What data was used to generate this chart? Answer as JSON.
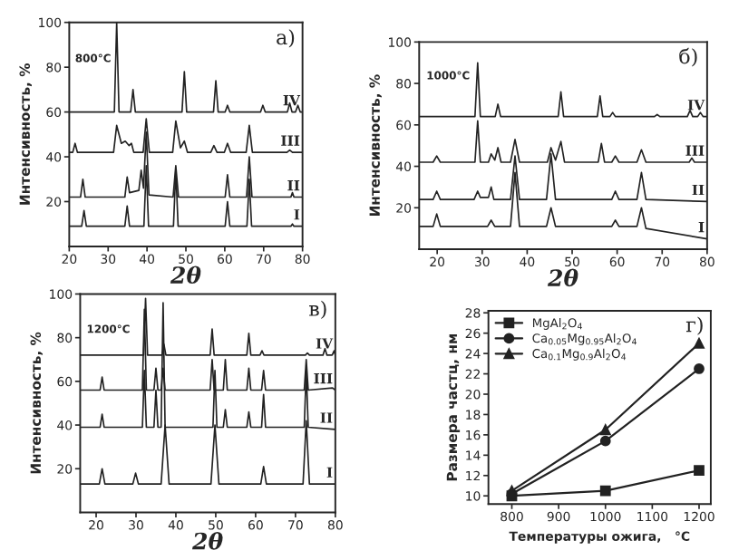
{
  "chart_data": [
    {
      "type": "line",
      "xlabel": "2θ",
      "ylabel": "Интенсивность, %",
      "xlim": [
        20,
        80
      ],
      "ylim": [
        0,
        100
      ],
      "xticks": [
        20,
        30,
        40,
        50,
        60,
        70,
        80
      ],
      "yticks": [
        20,
        40,
        60,
        80,
        100
      ],
      "marker": "none",
      "line_style": "solid",
      "grid": false,
      "legend": false,
      "annotations": [
        "а)",
        "800°C"
      ],
      "series": [
        {
          "name": "IV",
          "color": "#222222",
          "x": [
            20,
            31.6,
            32.2,
            32.8,
            35.8,
            36.4,
            37,
            49,
            49.6,
            50.2,
            57.1,
            57.7,
            58.3,
            60.1,
            60.7,
            61.3,
            69.2,
            69.8,
            70.4,
            76.1,
            76.7,
            77.3,
            78.2,
            78.8,
            79.4,
            80
          ],
          "values": [
            60,
            60,
            100,
            60,
            60,
            70,
            60,
            60,
            78,
            60,
            60,
            74,
            60,
            60,
            63,
            60,
            60,
            63,
            60,
            60,
            64,
            60,
            60,
            63,
            60,
            60
          ]
        },
        {
          "name": "III",
          "color": "#222222",
          "x": [
            20,
            20.9,
            21.5,
            22.1,
            31.4,
            32.2,
            33.4,
            34.4,
            35.4,
            36,
            36.6,
            39,
            39.8,
            40.6,
            46.6,
            47.4,
            48.6,
            49.6,
            50.4,
            56.4,
            57.2,
            58,
            59.9,
            60.7,
            61.5,
            65.5,
            66.3,
            67.1,
            76,
            76.7,
            77.4,
            80
          ],
          "values": [
            42,
            42,
            46,
            42,
            42,
            54,
            46,
            47,
            45,
            46,
            42,
            42,
            57,
            42,
            42,
            56,
            44,
            47,
            42,
            42,
            45,
            42,
            42,
            46,
            42,
            42,
            54,
            42,
            42,
            43,
            42,
            42
          ]
        },
        {
          "name": "II",
          "color": "#222222",
          "x": [
            20,
            22.9,
            23.5,
            24.1,
            34.3,
            34.9,
            35.5,
            37.9,
            38.5,
            39.1,
            39.8,
            40.5,
            46.7,
            47.4,
            48.1,
            60.1,
            60.7,
            61.3,
            65.6,
            66.3,
            67,
            77,
            77.4,
            77.8,
            80
          ],
          "values": [
            22,
            22,
            30,
            22,
            22,
            31,
            24,
            25,
            34,
            26,
            51,
            23,
            22,
            36,
            22,
            22,
            32,
            22,
            22,
            40,
            22,
            22,
            24,
            22,
            22
          ]
        },
        {
          "name": "I",
          "color": "#222222",
          "x": [
            20,
            23.2,
            23.8,
            24.4,
            34.3,
            34.9,
            35.5,
            39.2,
            39.8,
            40.4,
            46.8,
            47.4,
            48,
            60.1,
            60.7,
            61.3,
            65.7,
            66.3,
            66.9,
            77,
            77.4,
            77.8,
            80
          ],
          "values": [
            9,
            9,
            16,
            9,
            9,
            18,
            9,
            9,
            36,
            9,
            9,
            34,
            9,
            9,
            20,
            9,
            9,
            30,
            9,
            9,
            10,
            9,
            9
          ]
        }
      ]
    },
    {
      "type": "line",
      "xlabel": "2θ",
      "ylabel": "Интенсивность, %",
      "xlim": [
        16,
        80
      ],
      "ylim": [
        0,
        100
      ],
      "xticks": [
        20,
        30,
        40,
        50,
        60,
        70,
        80
      ],
      "yticks": [
        20,
        40,
        60,
        80,
        100
      ],
      "marker": "none",
      "line_style": "solid",
      "grid": false,
      "legend": false,
      "annotations": [
        "б)",
        "1000°C"
      ],
      "series": [
        {
          "name": "IV",
          "color": "#222222",
          "x": [
            16,
            28.4,
            29,
            29.6,
            32.9,
            33.5,
            34.1,
            46.9,
            47.5,
            48.1,
            55.6,
            56.2,
            56.8,
            58.4,
            59,
            59.6,
            68.3,
            68.9,
            69.5,
            75.6,
            76.2,
            76.8,
            77.9,
            78.5,
            79.1,
            80
          ],
          "values": [
            64,
            64,
            90,
            64,
            64,
            70,
            64,
            64,
            76,
            64,
            64,
            74,
            64,
            64,
            66,
            64,
            64,
            65,
            64,
            64,
            67,
            64,
            64,
            66,
            64,
            64
          ]
        },
        {
          "name": "III",
          "color": "#222222",
          "x": [
            16,
            19.1,
            19.9,
            20.7,
            28.4,
            29,
            29.6,
            31.4,
            32,
            32.8,
            33.5,
            34.2,
            36.3,
            37.3,
            38.3,
            44.5,
            45.3,
            46.3,
            47.5,
            48.3,
            55.8,
            56.5,
            57.2,
            58.8,
            59.6,
            60.4,
            64.4,
            65.4,
            66.4,
            76,
            76.6,
            77.2,
            80
          ],
          "values": [
            42,
            42,
            45,
            42,
            42,
            62,
            42,
            42,
            46,
            43,
            49,
            42,
            42,
            53,
            42,
            42,
            49,
            43,
            52,
            42,
            42,
            51,
            42,
            42,
            45,
            42,
            42,
            48,
            42,
            42,
            44,
            42,
            42
          ]
        },
        {
          "name": "II",
          "color": "#222222",
          "x": [
            16,
            19.1,
            19.9,
            20.7,
            28.2,
            29,
            29.6,
            31.4,
            32,
            32.6,
            36.3,
            37.3,
            38.3,
            44.3,
            45.3,
            46.3,
            58.8,
            59.6,
            60.4,
            64.4,
            65.4,
            66.4,
            80
          ],
          "values": [
            24,
            24,
            28,
            24,
            24,
            28,
            25,
            25,
            30,
            24,
            24,
            45,
            24,
            24,
            46,
            24,
            24,
            28,
            24,
            24,
            37,
            24,
            23
          ]
        },
        {
          "name": "I",
          "color": "#222222",
          "x": [
            16,
            19.1,
            19.9,
            20.7,
            31.2,
            32,
            32.8,
            36.3,
            37.3,
            38.3,
            44.3,
            45.3,
            46.3,
            58.8,
            59.6,
            60.4,
            64.4,
            65.4,
            66.4,
            80
          ],
          "values": [
            11,
            11,
            17,
            11,
            11,
            14,
            11,
            11,
            37,
            11,
            11,
            20,
            11,
            11,
            14,
            11,
            11,
            20,
            10,
            5
          ]
        }
      ]
    },
    {
      "type": "line",
      "xlabel": "2θ",
      "ylabel": "Интенсивность, %",
      "xlim": [
        16,
        80
      ],
      "ylim": [
        0,
        100
      ],
      "xticks": [
        20,
        30,
        40,
        50,
        60,
        70,
        80
      ],
      "yticks": [
        20,
        40,
        60,
        80,
        100
      ],
      "marker": "none",
      "line_style": "solid",
      "grid": false,
      "legend": false,
      "annotations": [
        "в)",
        "1200°C"
      ],
      "series": [
        {
          "name": "IV",
          "color": "#222222",
          "x": [
            16,
            31.9,
            32.4,
            32.9,
            36.5,
            37,
            37.5,
            48.6,
            49.1,
            49.6,
            57.8,
            58.3,
            58.8,
            61.1,
            61.6,
            62.1,
            72.5,
            73,
            73.5,
            76.9,
            77.4,
            77.9,
            79.2,
            79.7,
            80
          ],
          "values": [
            72,
            72,
            98,
            72,
            72,
            77,
            72,
            72,
            84,
            72,
            72,
            82,
            72,
            72,
            74,
            72,
            72,
            73,
            72,
            72,
            75,
            72,
            72,
            74,
            72
          ]
        },
        {
          "name": "III",
          "color": "#222222",
          "x": [
            16,
            21,
            21.5,
            22,
            31.6,
            32.1,
            32.6,
            34.5,
            35,
            35.5,
            36.3,
            36.8,
            37.3,
            48.6,
            49.1,
            49.6,
            51.9,
            52.4,
            52.9,
            57.8,
            58.3,
            58.8,
            61.5,
            62,
            62.5,
            72.2,
            72.7,
            73.2,
            79.3,
            80
          ],
          "values": [
            56,
            56,
            62,
            56,
            56,
            93,
            56,
            56,
            66,
            56,
            56,
            66,
            56,
            56,
            70,
            56,
            56,
            70,
            56,
            56,
            66,
            56,
            56,
            65,
            56,
            56,
            70,
            56,
            57,
            56
          ]
        },
        {
          "name": "II",
          "color": "#222222",
          "x": [
            16,
            21,
            21.5,
            22,
            31.6,
            32.1,
            32.6,
            34.5,
            35,
            35.5,
            36.3,
            36.8,
            37.3,
            49.3,
            49.8,
            50.3,
            51.9,
            52.4,
            52.9,
            57.8,
            58.3,
            58.8,
            61.5,
            62,
            62.5,
            72.2,
            72.7,
            73.2,
            80
          ],
          "values": [
            39,
            39,
            45,
            39,
            39,
            65,
            39,
            39,
            56,
            39,
            39,
            96,
            39,
            39,
            65,
            39,
            39,
            47,
            39,
            39,
            46,
            39,
            39,
            54,
            39,
            39,
            65,
            39,
            38
          ]
        },
        {
          "name": "I",
          "color": "#222222",
          "x": [
            16,
            20.8,
            21.5,
            22.2,
            29.2,
            29.9,
            30.6,
            36.3,
            37.3,
            38.3,
            48.8,
            49.8,
            50.8,
            61.3,
            62,
            62.7,
            71.9,
            72.7,
            73.5,
            80
          ],
          "values": [
            13,
            13,
            20,
            13,
            13,
            18,
            13,
            13,
            40,
            13,
            13,
            40,
            13,
            13,
            21,
            13,
            13,
            42,
            13,
            13
          ]
        }
      ]
    },
    {
      "type": "line",
      "xlabel": "Температуры ожига,   °C",
      "ylabel": "Размера частц, нм",
      "xlim": [
        750,
        1225
      ],
      "ylim": [
        9.2,
        28.2
      ],
      "xticks": [
        800,
        900,
        1000,
        1100,
        1200
      ],
      "yticks": [
        10,
        12,
        14,
        16,
        18,
        20,
        22,
        24,
        26,
        28
      ],
      "line_style": "solid",
      "grid": false,
      "legend": "top left",
      "annotations": [
        "г)"
      ],
      "x": [
        800,
        1000,
        1200
      ],
      "series": [
        {
          "name": "MgAl$_{2}$O$_{4}$",
          "color": "#222222",
          "marker": "square",
          "values": [
            10,
            10.5,
            12.5
          ]
        },
        {
          "name": "Ca$_{0.05}$Mg$_{0.95}$Al$_{2}$O$_{4}$",
          "color": "#222222",
          "marker": "circle",
          "values": [
            10.2,
            15.4,
            22.5
          ]
        },
        {
          "name": "Ca$_{0.1}$Mg$_{0.9}$Al$_{2}$O$_{4}$",
          "color": "#222222",
          "marker": "triangle",
          "values": [
            10.5,
            16.5,
            25
          ]
        }
      ]
    }
  ]
}
